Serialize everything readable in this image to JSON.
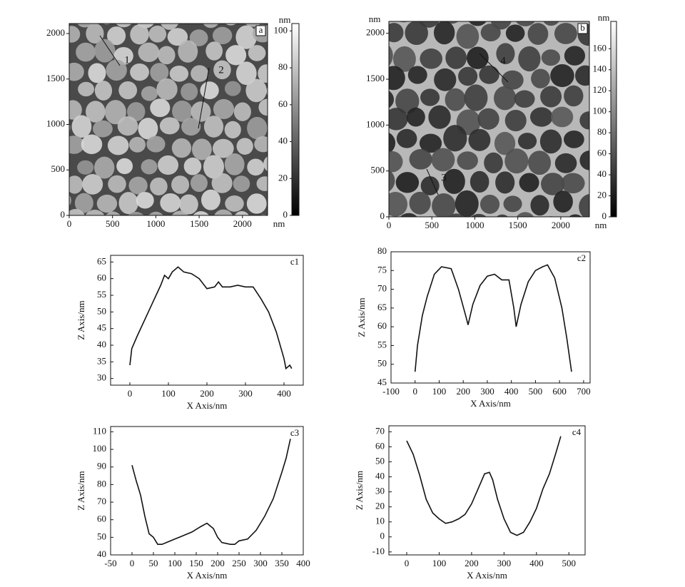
{
  "chart_data": [
    {
      "type": "image",
      "label": "a",
      "x_unit": "nm",
      "xlim": [
        0,
        2290
      ],
      "xticks": [
        0,
        500,
        1000,
        1500,
        2000
      ],
      "ylim": [
        0,
        2110
      ],
      "yticks": [
        0,
        500,
        1000,
        1500,
        2000
      ],
      "colorbar": {
        "lim": [
          0,
          104
        ],
        "ticks": [
          0,
          20,
          40,
          60,
          80,
          100
        ],
        "unit": "nm"
      },
      "markers": [
        "1",
        "2"
      ]
    },
    {
      "type": "image",
      "label": "b",
      "x_unit": "nm",
      "y_unit": "nm",
      "xlim": [
        0,
        2333
      ],
      "xticks": [
        0,
        500,
        1000,
        1500,
        2000
      ],
      "ylim": [
        0,
        2130
      ],
      "yticks": [
        0,
        500,
        1000,
        1500,
        2000
      ],
      "colorbar": {
        "lim": [
          0,
          186
        ],
        "ticks": [
          0,
          20,
          40,
          60,
          80,
          100,
          120,
          140,
          160
        ],
        "unit": "nm"
      },
      "markers": [
        "4",
        "3"
      ]
    },
    {
      "type": "line",
      "label": "c1",
      "x_label": "X Axis/nm",
      "y_label": "Z Axis/nm",
      "xlim": [
        -50,
        450
      ],
      "xticks": [
        0,
        100,
        200,
        300,
        400
      ],
      "ylim": [
        28,
        67
      ],
      "yticks": [
        30,
        35,
        40,
        45,
        50,
        55,
        60,
        65
      ],
      "x": [
        0,
        5,
        20,
        40,
        60,
        80,
        90,
        100,
        110,
        125,
        140,
        160,
        180,
        200,
        220,
        230,
        240,
        260,
        280,
        300,
        320,
        340,
        360,
        380,
        400,
        405,
        415,
        420
      ],
      "values": [
        34,
        39,
        43,
        48,
        53,
        58,
        61,
        60,
        62,
        63.5,
        62,
        61.5,
        60,
        57,
        57.5,
        59,
        57.5,
        57.5,
        58,
        57.5,
        57.5,
        54,
        50,
        44,
        36,
        33,
        34,
        33
      ]
    },
    {
      "type": "line",
      "label": "c2",
      "x_label": "X Axis/nm",
      "y_label": "Z Axis/nm",
      "xlim": [
        -100,
        727
      ],
      "xticks": [
        -100,
        0,
        100,
        200,
        300,
        400,
        500,
        600,
        700
      ],
      "ylim": [
        45,
        80
      ],
      "yticks": [
        45,
        50,
        55,
        60,
        65,
        70,
        75,
        80
      ],
      "x": [
        0,
        10,
        30,
        50,
        80,
        110,
        150,
        180,
        210,
        220,
        240,
        270,
        300,
        330,
        360,
        390,
        410,
        420,
        440,
        470,
        500,
        530,
        550,
        580,
        610,
        630,
        650
      ],
      "values": [
        48,
        55,
        63,
        68,
        74,
        76,
        75.5,
        70,
        63,
        60.5,
        66,
        71,
        73.5,
        74,
        72.5,
        72.5,
        65,
        60,
        66,
        72,
        75,
        76,
        76.5,
        73,
        65,
        57,
        48
      ]
    },
    {
      "type": "line",
      "label": "c3",
      "x_label": "X Axis/nm",
      "y_label": "Z Axis/nm",
      "xlim": [
        -50,
        400
      ],
      "xticks": [
        -50,
        0,
        50,
        100,
        150,
        200,
        250,
        300,
        350,
        400
      ],
      "ylim": [
        40,
        113
      ],
      "yticks": [
        40,
        50,
        60,
        70,
        80,
        90,
        100,
        110
      ],
      "x": [
        0,
        10,
        20,
        30,
        40,
        50,
        60,
        70,
        80,
        100,
        120,
        140,
        160,
        175,
        190,
        200,
        210,
        230,
        240,
        250,
        270,
        290,
        310,
        330,
        350,
        360,
        370
      ],
      "values": [
        91,
        82,
        74,
        62,
        52,
        50,
        46,
        46,
        47,
        49,
        51,
        53,
        56,
        58,
        55,
        50,
        47,
        46,
        46,
        48,
        49,
        54,
        62,
        72,
        87,
        95,
        106
      ]
    },
    {
      "type": "line",
      "label": "c4",
      "x_label": "X Axis/nm",
      "y_label": "Z Axis/nm",
      "xlim": [
        -55,
        550
      ],
      "xticks": [
        0,
        100,
        200,
        300,
        400,
        500
      ],
      "ylim": [
        -12,
        74
      ],
      "yticks": [
        -10,
        0,
        10,
        20,
        30,
        40,
        50,
        60,
        70
      ],
      "x": [
        0,
        20,
        40,
        60,
        80,
        100,
        120,
        140,
        160,
        180,
        200,
        220,
        240,
        255,
        265,
        280,
        300,
        320,
        340,
        360,
        380,
        400,
        420,
        440,
        460,
        475
      ],
      "values": [
        64,
        55,
        41,
        25,
        16,
        12,
        9,
        10,
        12,
        15,
        22,
        32,
        42,
        43,
        38,
        25,
        12,
        3,
        1,
        3,
        10,
        19,
        32,
        42,
        56,
        67
      ]
    }
  ]
}
